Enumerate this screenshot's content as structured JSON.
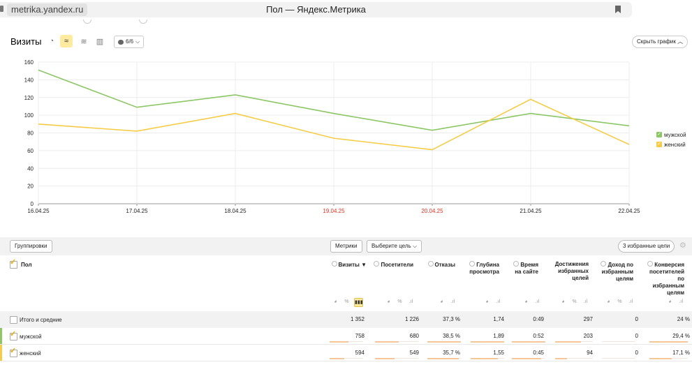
{
  "browser": {
    "url": "metrika.yandex.ru",
    "title": "Пол — Яндекс.Метрика"
  },
  "chart_toolbar": {
    "title": "Визиты",
    "series_select": "6/6",
    "hide_button": "Скрыть график"
  },
  "chart_data": {
    "type": "line",
    "categories": [
      "16.04.25",
      "17.04.25",
      "18.04.25",
      "19.04.25",
      "20.04.25",
      "21.04.25",
      "22.04.25"
    ],
    "weekend_categories": [
      "19.04.25",
      "20.04.25"
    ],
    "series": [
      {
        "name": "мужской",
        "color": "#8cc665",
        "values": [
          151,
          109,
          123,
          102,
          83,
          102,
          88
        ]
      },
      {
        "name": "женский",
        "color": "#f6cc46",
        "values": [
          90,
          82,
          102,
          74,
          61,
          118,
          67
        ]
      }
    ],
    "y_ticks": [
      0,
      20,
      40,
      60,
      80,
      100,
      120,
      140,
      160
    ],
    "ylim": [
      0,
      160
    ],
    "grid": true,
    "legend_position": "right",
    "title": "",
    "xlabel": "",
    "ylabel": ""
  },
  "table_toolbar": {
    "groupings_button": "Группировки",
    "metrics_button": "Метрики",
    "goal_select": "Выберите цель",
    "favorites_button": "3 избранные цели"
  },
  "table": {
    "dimension_header": "Пол",
    "columns": [
      {
        "label": "Визиты",
        "sort": "▼",
        "info": true
      },
      {
        "label": "Посетители",
        "info": true
      },
      {
        "label": "Отказы",
        "info": true
      },
      {
        "label": "Глубина просмотра",
        "info": true
      },
      {
        "label": "Время на сайте",
        "info": true
      },
      {
        "label": "Достижения избранных целей",
        "info": false
      },
      {
        "label": "Доход по избранным целям",
        "info": true
      },
      {
        "label": "Конверсия посетителей по избранным целям",
        "info": true
      }
    ],
    "totals": {
      "label": "Итого и средние",
      "values": [
        "1 352",
        "1 226",
        "37,3 %",
        "1,74",
        "0:49",
        "297",
        "0",
        "24 %"
      ]
    },
    "rows": [
      {
        "label": "мужской",
        "color": "#8cc665",
        "values": [
          "758",
          "680",
          "38,5 %",
          "1,89",
          "0:52",
          "203",
          "0",
          "29,4 %"
        ],
        "bar_fractions": [
          0.56,
          0.55,
          1.0,
          1.0,
          1.0,
          0.68,
          0,
          1.0
        ]
      },
      {
        "label": "женский",
        "color": "#f6cc46",
        "values": [
          "594",
          "549",
          "35,7 %",
          "1,55",
          "0:45",
          "94",
          "0",
          "17,1 %"
        ],
        "bar_fractions": [
          0.44,
          0.45,
          0.93,
          0.82,
          0.87,
          0.32,
          0,
          0.58
        ]
      }
    ]
  },
  "icons": {
    "lock": "lock-icon",
    "bookmark": "bookmark-icon",
    "gear": "gear-icon"
  }
}
